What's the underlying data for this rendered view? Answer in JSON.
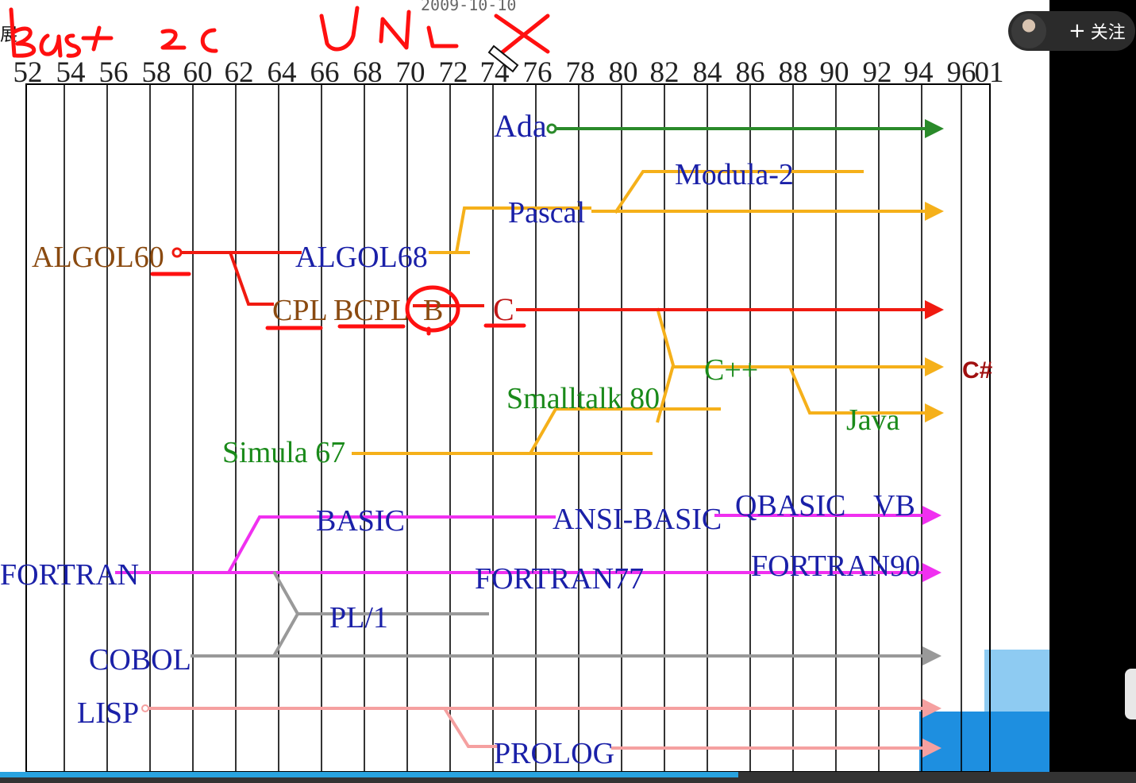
{
  "top": {
    "left_fragment": "展",
    "date": "2009-10-10",
    "handwriting": "Basic UNIX",
    "follow_label": "关注",
    "plus_icon": "+"
  },
  "video": {
    "progress_fraction": 0.65
  },
  "years": [
    "52",
    "54",
    "56",
    "58",
    "60",
    "62",
    "64",
    "66",
    "68",
    "70",
    "72",
    "74",
    "76",
    "78",
    "80",
    "82",
    "84",
    "86",
    "88",
    "90",
    "92",
    "94",
    "96",
    "01"
  ],
  "languages": [
    {
      "key": "ada",
      "label": "Ada",
      "color": "#1a20a8"
    },
    {
      "key": "modula2",
      "label": "Modula-2",
      "color": "#1a20a8"
    },
    {
      "key": "pascal",
      "label": "Pascal",
      "color": "#1a20a8"
    },
    {
      "key": "algol60",
      "label": "ALGOL60",
      "color": "#8a4a10"
    },
    {
      "key": "algol68",
      "label": "ALGOL68",
      "color": "#1a20a8"
    },
    {
      "key": "cpl",
      "label": "CPL",
      "color": "#8a4a10"
    },
    {
      "key": "bcpl",
      "label": "BCPL",
      "color": "#8a4a10"
    },
    {
      "key": "b",
      "label": "B",
      "color": "#8a4a10"
    },
    {
      "key": "c",
      "label": "C",
      "color": "#c01818"
    },
    {
      "key": "cpp",
      "label": "C++",
      "color": "#1a8a1a"
    },
    {
      "key": "csharp",
      "label": "C#",
      "color": "#a01010"
    },
    {
      "key": "smalltalk",
      "label": "Smalltalk 80",
      "color": "#1a8a1a"
    },
    {
      "key": "java",
      "label": "Java",
      "color": "#1a8a1a"
    },
    {
      "key": "simula",
      "label": "Simula 67",
      "color": "#1a8a1a"
    },
    {
      "key": "basic",
      "label": "BASIC",
      "color": "#1a20a8"
    },
    {
      "key": "ansibasic",
      "label": "ANSI-BASIC",
      "color": "#1a20a8"
    },
    {
      "key": "qbasic",
      "label": "QBASIC",
      "color": "#1a20a8"
    },
    {
      "key": "vb",
      "label": "VB",
      "color": "#1a20a8"
    },
    {
      "key": "fortran",
      "label": "FORTRAN",
      "color": "#1a20a8"
    },
    {
      "key": "fortran77",
      "label": "FORTRAN77",
      "color": "#1a20a8"
    },
    {
      "key": "fortran90",
      "label": "FORTRAN90",
      "color": "#1a20a8"
    },
    {
      "key": "pl1",
      "label": "PL/1",
      "color": "#1a20a8"
    },
    {
      "key": "cobol",
      "label": "COBOL",
      "color": "#1a20a8"
    },
    {
      "key": "lisp",
      "label": "LISP",
      "color": "#1a20a8"
    },
    {
      "key": "prolog",
      "label": "PROLOG",
      "color": "#1a20a8"
    }
  ],
  "lineage_colors": {
    "ada": "#2a8a2a",
    "pascal": "#f5b01a",
    "c": "#f01a10",
    "basic": "#f030f0",
    "cobol": "#999999",
    "lisp": "#f5a0a0",
    "grid": "#000000",
    "annotation": "#ff1010"
  }
}
